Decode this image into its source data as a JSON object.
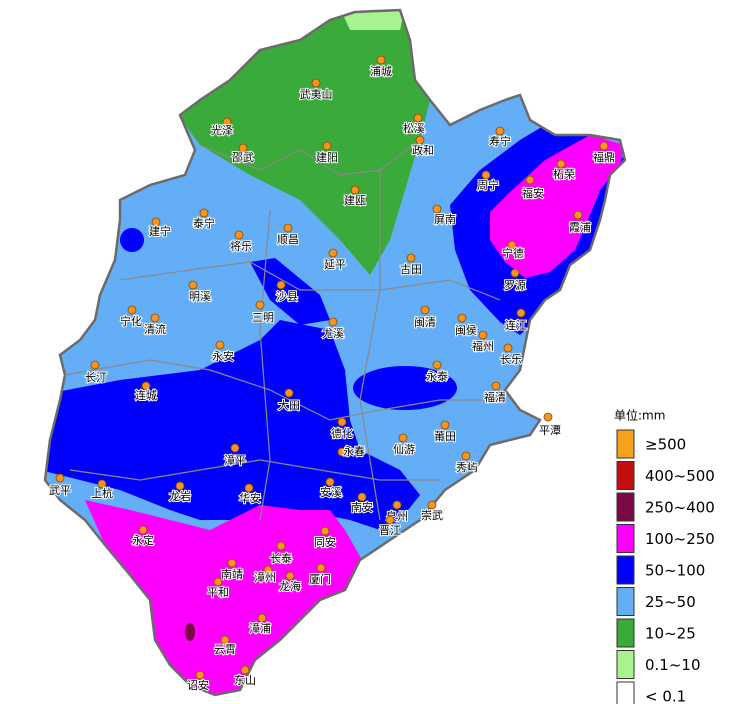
{
  "legend": {
    "title": "单位:mm",
    "items": [
      {
        "label": "≥500",
        "color": "#f7a21b"
      },
      {
        "label": "400~500",
        "color": "#c40f0f"
      },
      {
        "label": "250~400",
        "color": "#7a0a45"
      },
      {
        "label": "100~250",
        "color": "#ff00ff"
      },
      {
        "label": "50~100",
        "color": "#0000ff"
      },
      {
        "label": "25~50",
        "color": "#63aef7"
      },
      {
        "label": "10~25",
        "color": "#3aaa3a"
      },
      {
        "label": "0.1~10",
        "color": "#a8f290"
      },
      {
        "label": "< 0.1",
        "color": "#ffffff"
      }
    ]
  },
  "cities": [
    "浦城",
    "武夷山",
    "光泽",
    "松溪",
    "寿宁",
    "政和",
    "邵武",
    "建阳",
    "福鼎",
    "柘荣",
    "周宁",
    "福安",
    "建瓯",
    "泰宁",
    "建宁",
    "屏南",
    "霞浦",
    "将乐",
    "顺昌",
    "宁德",
    "延平",
    "古田",
    "罗源",
    "沙县",
    "明溪",
    "三明",
    "宁化",
    "清流",
    "尤溪",
    "闽清",
    "闽侯",
    "连江",
    "福州",
    "永安",
    "长乐",
    "长汀",
    "永泰",
    "连城",
    "福清",
    "大田",
    "平潭",
    "德化",
    "仙游",
    "莆田",
    "永春",
    "漳平",
    "秀屿",
    "武平",
    "上杭",
    "龙岩",
    "安溪",
    "华安",
    "南安",
    "泉州",
    "崇武",
    "晋江",
    "永定",
    "同安",
    "长泰",
    "南靖",
    "漳州",
    "龙海",
    "厦门",
    "平和",
    "漳浦",
    "云霄",
    "诏安",
    "东山"
  ]
}
